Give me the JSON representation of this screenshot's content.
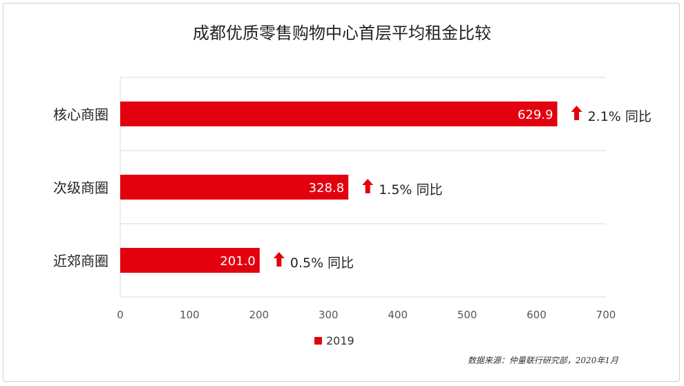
{
  "chart_data": {
    "type": "bar",
    "orientation": "horizontal",
    "title": "成都优质零售购物中心首层平均租金比较",
    "categories": [
      "核心商圈",
      "次级商圈",
      "近郊商圈"
    ],
    "series": [
      {
        "name": "2019",
        "values": [
          629.9,
          328.8,
          201.0
        ],
        "color": "#e3000f"
      }
    ],
    "value_labels": [
      "629.9",
      "328.8",
      "201.0"
    ],
    "annotations": [
      "2.1% 同比",
      "1.5% 同比",
      "0.5% 同比"
    ],
    "annotation_arrow_color": "#e3000f",
    "xlim": [
      0,
      700
    ],
    "xticks": [
      0,
      100,
      200,
      300,
      400,
      500,
      600,
      700
    ],
    "grid": true,
    "legend": "bottom",
    "source": "数据来源：仲量联行研究部，2020年1月"
  }
}
